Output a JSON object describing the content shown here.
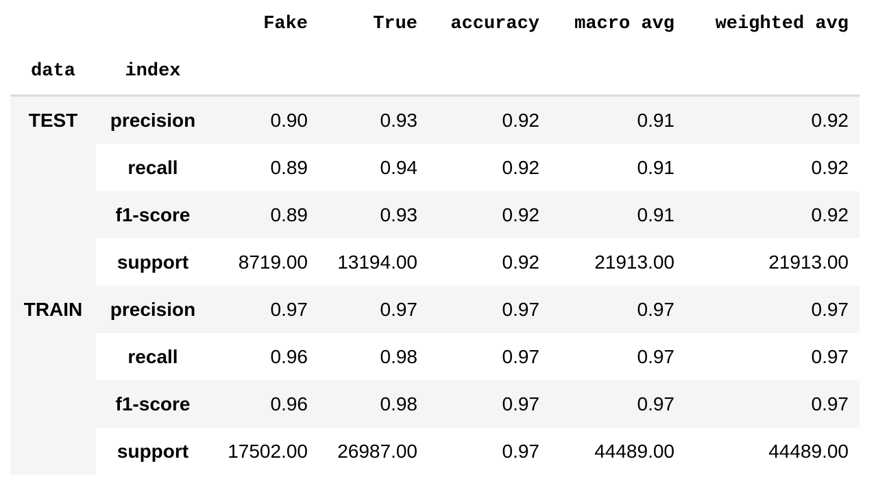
{
  "table": {
    "columns": [
      "Fake",
      "True",
      "accuracy",
      "macro avg",
      "weighted avg"
    ],
    "index_names": [
      "data",
      "index"
    ],
    "groups": [
      {
        "label": "TEST",
        "rows": [
          {
            "index": "precision",
            "values": [
              "0.90",
              "0.93",
              "0.92",
              "0.91",
              "0.92"
            ]
          },
          {
            "index": "recall",
            "values": [
              "0.89",
              "0.94",
              "0.92",
              "0.91",
              "0.92"
            ]
          },
          {
            "index": "f1-score",
            "values": [
              "0.89",
              "0.93",
              "0.92",
              "0.91",
              "0.92"
            ]
          },
          {
            "index": "support",
            "values": [
              "8719.00",
              "13194.00",
              "0.92",
              "21913.00",
              "21913.00"
            ]
          }
        ]
      },
      {
        "label": "TRAIN",
        "rows": [
          {
            "index": "precision",
            "values": [
              "0.97",
              "0.97",
              "0.97",
              "0.97",
              "0.97"
            ]
          },
          {
            "index": "recall",
            "values": [
              "0.96",
              "0.98",
              "0.97",
              "0.97",
              "0.97"
            ]
          },
          {
            "index": "f1-score",
            "values": [
              "0.96",
              "0.98",
              "0.97",
              "0.97",
              "0.97"
            ]
          },
          {
            "index": "support",
            "values": [
              "17502.00",
              "26987.00",
              "0.97",
              "44489.00",
              "44489.00"
            ]
          }
        ]
      }
    ]
  }
}
